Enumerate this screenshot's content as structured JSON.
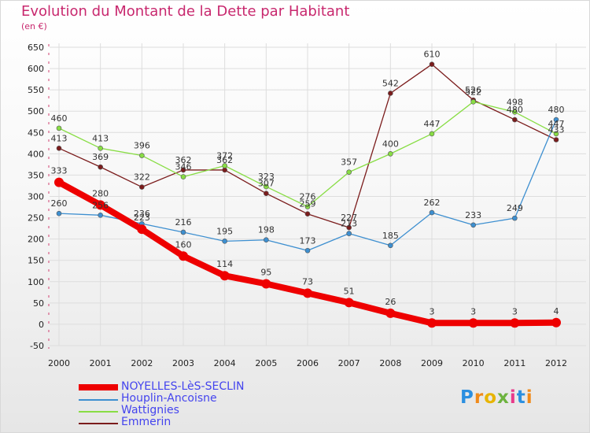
{
  "title": "Evolution du Montant de la Dette par Habitant",
  "subtitle": "(en €)",
  "logo": {
    "letters": [
      "P",
      "r",
      "o",
      "x",
      "i",
      "t",
      "i"
    ],
    "colors": [
      "#2b8fe0",
      "#f08a1a",
      "#e8b400",
      "#6db33f",
      "#e83a8a",
      "#2b8fe0",
      "#f08a1a"
    ]
  },
  "chart_data": {
    "type": "line",
    "categories": [
      "2000",
      "2001",
      "2002",
      "2003",
      "2004",
      "2005",
      "2006",
      "2007",
      "2008",
      "2009",
      "2010",
      "2011",
      "2012"
    ],
    "ylim": [
      -50,
      650
    ],
    "yticks": [
      "-50",
      "0",
      "50",
      "100",
      "150",
      "200",
      "250",
      "300",
      "350",
      "400",
      "450",
      "500",
      "550",
      "600",
      "650"
    ],
    "grid": true,
    "legend": "bottom-left",
    "series": [
      {
        "name": "Emmerin",
        "color": "#7b1c1c",
        "values": [
          413,
          369,
          322,
          362,
          362,
          307,
          259,
          227,
          542,
          610,
          526,
          480,
          433
        ]
      },
      {
        "name": "Wattignies",
        "color": "#88dd44",
        "values": [
          460,
          413,
          396,
          346,
          372,
          323,
          276,
          357,
          400,
          447,
          522,
          498,
          447
        ]
      },
      {
        "name": "Houplin-Ancoisne",
        "color": "#3d8fd0",
        "values": [
          260,
          256,
          236,
          216,
          195,
          198,
          173,
          213,
          185,
          262,
          233,
          249,
          480
        ]
      },
      {
        "name": "NOYELLES-LèS-SECLIN",
        "color": "#ee0000",
        "values": [
          333,
          280,
          223,
          160,
          114,
          95,
          73,
          51,
          26,
          3,
          3,
          3,
          4
        ]
      }
    ]
  }
}
